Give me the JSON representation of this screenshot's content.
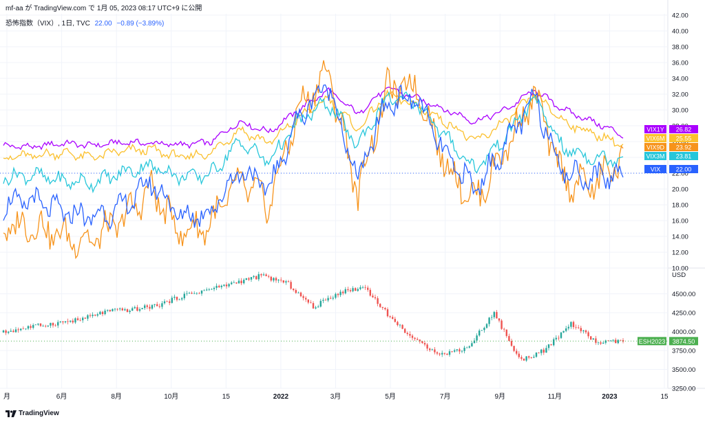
{
  "header": {
    "publish_line": "mf-aa が TradingView.com で 1月 05, 2023 08:17 UTC+9 に公開"
  },
  "legend": {
    "symbol": "恐怖指数（VIX）, 1日, TVC",
    "last": "22.00",
    "change": "−0.89 (−3.89%)"
  },
  "brand": {
    "name": "TradingView",
    "logo_icon": "tradingview-logo-icon"
  },
  "colors": {
    "VIX": "#2962ff",
    "VIX9D": "#f7931a",
    "VIX3M": "#26c6da",
    "VIX6M": "#fbc02d",
    "VIX1Y": "#aa00ff",
    "ESH2023": "#4caf50"
  },
  "x_axis": {
    "ticks": [
      "月",
      "6月",
      "8月",
      "10月",
      "15",
      "2022",
      "3月",
      "5月",
      "7月",
      "9月",
      "11月",
      "2023",
      "15"
    ]
  },
  "chart_data": [
    {
      "type": "line",
      "title": "恐怖指数（VIX）, 1日, TVC",
      "ylim": [
        10,
        42
      ],
      "y_ticks": [
        "10.00",
        "12.00",
        "14.00",
        "16.00",
        "18.00",
        "20.00",
        "22.00",
        "24.00",
        "26.00",
        "28.00",
        "30.00",
        "32.00",
        "34.00",
        "36.00",
        "38.00",
        "40.00",
        "42.00"
      ],
      "x": [
        "2021-04",
        "2021-05",
        "2021-06",
        "2021-07",
        "2021-08",
        "2021-09",
        "2021-10",
        "2021-11",
        "2021-12",
        "2022-01",
        "2022-02",
        "2022-03",
        "2022-04",
        "2022-05",
        "2022-06",
        "2022-07",
        "2022-08",
        "2022-09",
        "2022-10",
        "2022-11",
        "2022-12",
        "2023-01"
      ],
      "series": [
        {
          "name": "VIX1Y",
          "last": "26.82",
          "values": [
            25.5,
            25.3,
            25.8,
            25.5,
            25.9,
            25.8,
            25.6,
            25.9,
            28.5,
            27.2,
            30.0,
            32.5,
            29.5,
            32.8,
            31.5,
            30.0,
            28.5,
            30.0,
            32.5,
            30.0,
            28.5,
            26.8
          ]
        },
        {
          "name": "VIX6M",
          "last": "25.55",
          "values": [
            24.0,
            24.2,
            24.6,
            24.0,
            24.8,
            25.0,
            24.0,
            24.5,
            27.5,
            25.8,
            29.0,
            31.5,
            27.5,
            32.0,
            30.5,
            28.5,
            26.0,
            28.5,
            32.0,
            28.5,
            27.0,
            25.6
          ]
        },
        {
          "name": "VIX9D",
          "last": "23.92",
          "values": [
            15.0,
            15.5,
            14.0,
            13.5,
            16.0,
            20.0,
            14.5,
            15.5,
            21.0,
            18.0,
            30.0,
            35.0,
            19.5,
            32.5,
            33.0,
            23.0,
            18.5,
            25.0,
            32.0,
            21.0,
            20.5,
            23.9
          ]
        },
        {
          "name": "VIX3M",
          "last": "23.81",
          "values": [
            21.5,
            21.8,
            21.0,
            20.8,
            22.0,
            23.0,
            21.5,
            21.8,
            26.0,
            23.5,
            28.5,
            31.0,
            25.5,
            31.5,
            31.0,
            26.5,
            22.5,
            26.5,
            31.5,
            25.0,
            24.0,
            23.8
          ]
        },
        {
          "name": "VIX",
          "last": "22.00",
          "values": [
            18.0,
            18.5,
            17.0,
            16.5,
            17.5,
            21.0,
            16.5,
            17.0,
            22.5,
            20.0,
            29.0,
            33.5,
            21.0,
            31.0,
            31.5,
            24.0,
            20.0,
            25.5,
            31.5,
            22.0,
            21.5,
            22.0
          ]
        }
      ]
    },
    {
      "type": "line",
      "title": "ESH2023",
      "ylabel": "USD",
      "ylim": [
        3250,
        4750
      ],
      "y_ticks": [
        "3250.00",
        "3500.00",
        "3750.00",
        "4000.00",
        "4250.00",
        "4500.00"
      ],
      "series": [
        {
          "name": "ESH2023",
          "last": "3874.50",
          "values": [
            3990,
            4060,
            4110,
            4160,
            4270,
            4290,
            4350,
            4480,
            4560,
            4650,
            4740,
            4640,
            4320,
            4520,
            4590,
            4180,
            3870,
            3700,
            3790,
            4250,
            3620,
            3760,
            4110,
            3850,
            3874.5
          ]
        }
      ]
    }
  ]
}
